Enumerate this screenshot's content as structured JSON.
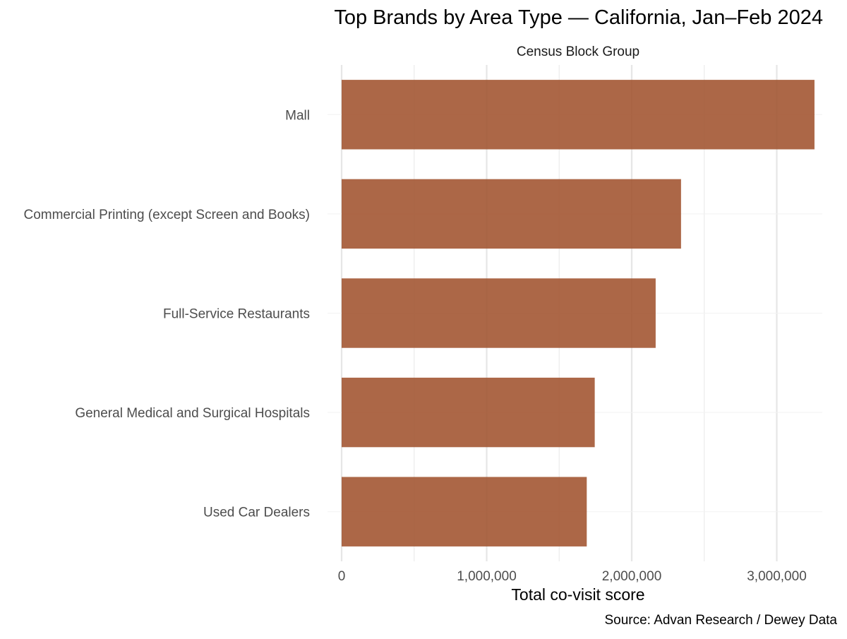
{
  "chart_data": {
    "type": "bar",
    "orientation": "horizontal",
    "title": "Top Brands by Area Type — California, Jan–Feb 2024",
    "facet_label": "Census Block Group",
    "xlabel": "Total co-visit score",
    "ylabel": "",
    "caption": "Source: Advan Research / Dewey Data",
    "categories": [
      "Mall",
      "Commercial Printing (except Screen and Books)",
      "Full-Service Restaurants",
      "General Medical and Surgical Hospitals",
      "Used Car Dealers"
    ],
    "values": [
      3260000,
      2340000,
      2165000,
      1745000,
      1690000
    ],
    "xlim": [
      0,
      3260000
    ],
    "xticks": [
      0,
      1000000,
      2000000,
      3000000
    ],
    "xtick_labels": [
      "0",
      "1,000,000",
      "2,000,000",
      "3,000,000"
    ],
    "grid": true,
    "legend": "none",
    "bar_color": "#a0522d"
  }
}
